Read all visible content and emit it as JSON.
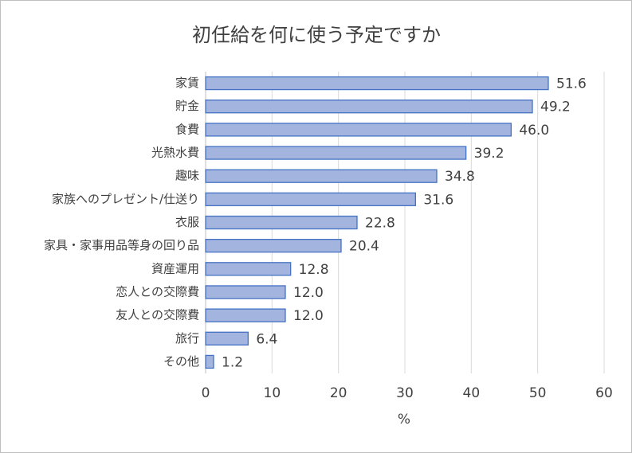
{
  "chart_data": {
    "type": "barh",
    "title": "初任給を何に使う予定ですか",
    "categories": [
      "家賃",
      "貯金",
      "食費",
      "光熱水費",
      "趣味",
      "家族へのプレゼント/仕送り",
      "衣服",
      "家具・家事用品等身の回り品",
      "資産運用",
      "恋人との交際費",
      "友人との交際費",
      "旅行",
      "その他"
    ],
    "values": [
      51.6,
      49.2,
      46.0,
      39.2,
      34.8,
      31.6,
      22.8,
      20.4,
      12.8,
      12.0,
      12.0,
      6.4,
      1.2
    ],
    "value_labels": [
      "51.6",
      "49.2",
      "46.0",
      "39.2",
      "34.8",
      "31.6",
      "22.8",
      "20.4",
      "12.8",
      "12.0",
      "12.0",
      "6.4",
      "1.2"
    ],
    "color": "#a3b4df",
    "xlabel": "%",
    "xlim": [
      0,
      60
    ],
    "xticks": [
      0,
      10,
      20,
      30,
      40,
      50,
      60
    ],
    "grid": true
  }
}
